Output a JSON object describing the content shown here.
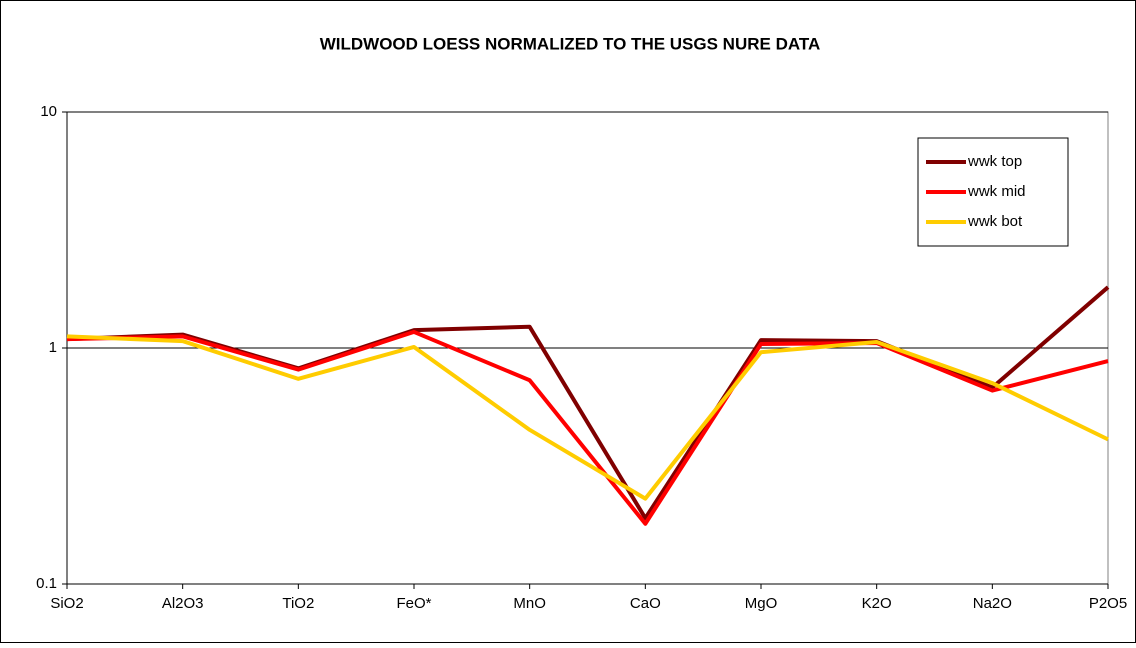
{
  "chart_data": {
    "type": "line",
    "title": "WILDWOOD LOESS NORMALIZED TO THE USGS NURE DATA",
    "categories": [
      "SiO2",
      "Al2O3",
      "TiO2",
      "FeO*",
      "MnO",
      "CaO",
      "MgO",
      "K2O",
      "Na2O",
      "P2O5"
    ],
    "series": [
      {
        "name": "wwk top",
        "color": "#800000",
        "values": [
          1.09,
          1.14,
          0.82,
          1.19,
          1.23,
          0.19,
          1.08,
          1.07,
          0.68,
          1.81
        ]
      },
      {
        "name": "wwk mid",
        "color": "#ff0000",
        "values": [
          1.09,
          1.12,
          0.81,
          1.17,
          0.73,
          0.18,
          1.04,
          1.05,
          0.66,
          0.88
        ]
      },
      {
        "name": "wwk bot",
        "color": "#ffcc00",
        "values": [
          1.12,
          1.07,
          0.74,
          1.01,
          0.45,
          0.23,
          0.96,
          1.06,
          0.71,
          0.41
        ]
      }
    ],
    "ylim": [
      0.1,
      10
    ],
    "yticks": [
      0.1,
      1,
      10
    ],
    "log_y": true,
    "grid": true,
    "legend": "top-right"
  }
}
